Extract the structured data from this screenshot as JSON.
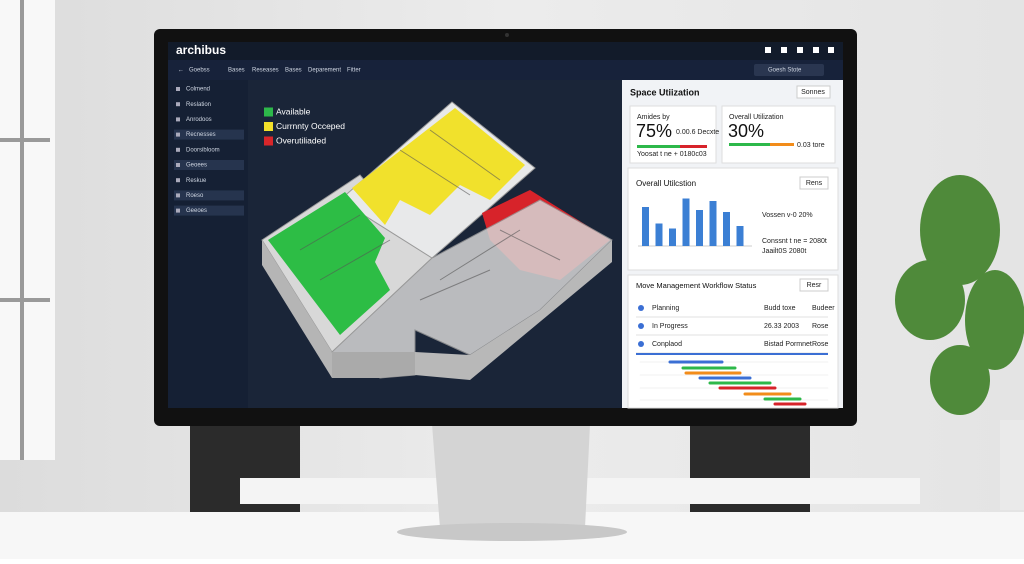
{
  "header": {
    "brand": "archibus"
  },
  "nav": {
    "back": "Goebss",
    "items": [
      "Bases",
      "Reseases",
      "Bases",
      "Deparement",
      "Fitter"
    ],
    "search": "Goesh Stote"
  },
  "sidebar": [
    "Colmend",
    "Reslation",
    "Anrodoos",
    "Recnesses",
    "Doorsibloom",
    "Geoees",
    "Reskue",
    "Roeso",
    "Geeoes"
  ],
  "legend": [
    {
      "label": "Available",
      "color": "#2db84a"
    },
    {
      "label": "Currnnty Occeped",
      "color": "#f2e02a"
    },
    {
      "label": "Overutiliaded",
      "color": "#d9262a"
    }
  ],
  "space_panel": {
    "title": "Space Utiization",
    "button": "Sonnes",
    "card1": {
      "label": "Amides by",
      "value": "75%",
      "note": "0.00.6 Decxte",
      "foot": "Yoosat t ne + 0180c03"
    },
    "card2": {
      "label": "Overall Utilization",
      "value": "30%",
      "note": "0.03 tore"
    }
  },
  "chart_panel": {
    "title": "Overall Utilcstion",
    "button": "Rens",
    "type": "bar",
    "color": "#3b7fd4",
    "ylim": [
      0,
      100
    ],
    "values": [
      78,
      45,
      35,
      95,
      72,
      90,
      68,
      40
    ],
    "notes": [
      "Vossen v-0 20%",
      "Conssnt t ne = 2080t",
      "Jaailt0S 2080t"
    ]
  },
  "workflow": {
    "title": "Move Management Workflow Status",
    "button": "Resr",
    "rows": [
      [
        "Planning",
        "Budd toxe",
        "Budeer"
      ],
      [
        "In Progress",
        "26.33 2003",
        "Rose"
      ],
      [
        "Conplaod",
        "Bistad Pormnet",
        "Rose"
      ]
    ]
  }
}
